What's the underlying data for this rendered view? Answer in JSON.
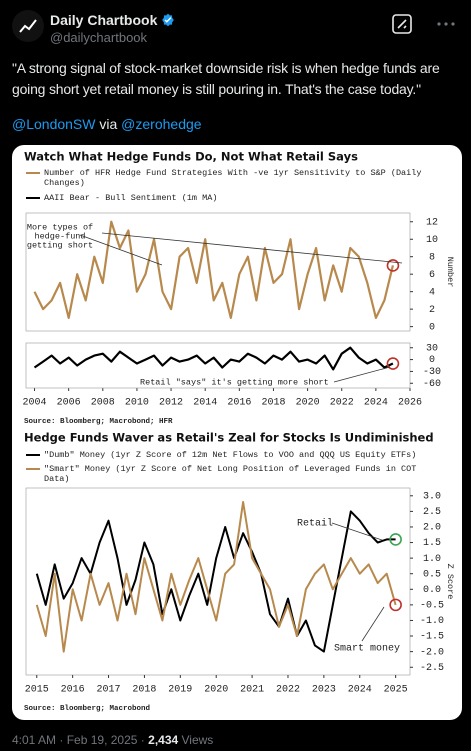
{
  "tweet": {
    "name": "Daily Chartbook",
    "handle": "@dailychartbook",
    "text": "\"A strong signal of stock-market downside risk is when hedge funds are going short yet retail money is still pouring in. That's the case today.\"",
    "mention1": "@LondonSW",
    "via": "via",
    "mention2": "@zerohedge",
    "time": "4:01 AM",
    "separator": "·",
    "date": "Feb 19, 2025",
    "views": "2,434",
    "views_label": "Views"
  },
  "chart_data": [
    {
      "type": "line",
      "title": "Watch What Hedge Funds Do, Not What Retail Says",
      "x": [
        2004,
        2004.5,
        2005,
        2005.5,
        2006,
        2006.5,
        2007,
        2007.5,
        2008,
        2008.5,
        2009,
        2009.5,
        2010,
        2010.5,
        2011,
        2011.5,
        2012,
        2012.5,
        2013,
        2013.5,
        2014,
        2014.5,
        2015,
        2015.5,
        2016,
        2016.5,
        2017,
        2017.5,
        2018,
        2018.5,
        2019,
        2019.5,
        2020,
        2020.5,
        2021,
        2021.5,
        2022,
        2022.5,
        2023,
        2023.5,
        2024,
        2024.5,
        2025
      ],
      "series": [
        {
          "name": "Number of HFR Hedge Fund Strategies With -ve 1yr Sensitivity to S&P (Daily Changes)",
          "color": "#b8894d",
          "values": [
            4,
            2,
            3,
            5,
            1,
            6,
            3,
            8,
            5,
            12,
            9,
            11,
            4,
            6,
            10,
            4,
            2,
            8,
            9,
            5,
            10,
            3,
            5,
            1,
            6,
            8,
            3,
            9,
            5,
            6,
            10,
            2,
            6,
            9,
            3,
            7,
            4,
            9,
            8,
            5,
            1,
            3,
            7
          ]
        },
        {
          "name": "AAII Bear - Bull Sentiment (1m MA)",
          "color": "#000000",
          "axis": "y2",
          "values": [
            -20,
            -5,
            10,
            -10,
            5,
            -15,
            0,
            10,
            15,
            -5,
            20,
            5,
            -10,
            0,
            10,
            -15,
            5,
            -5,
            0,
            10,
            -10,
            5,
            -20,
            0,
            -5,
            15,
            5,
            -10,
            10,
            0,
            20,
            -5,
            0,
            -10,
            10,
            -25,
            15,
            30,
            5,
            -10,
            0,
            -20,
            -10
          ]
        }
      ],
      "xlim": [
        2003.5,
        2026
      ],
      "xticks": [
        2004,
        2006,
        2008,
        2010,
        2012,
        2014,
        2016,
        2018,
        2020,
        2022,
        2024,
        2026
      ],
      "ylim": [
        -0.5,
        13
      ],
      "yticks": [
        0,
        2,
        4,
        6,
        8,
        10,
        12
      ],
      "ylabel": "Number",
      "y2lim": [
        -72,
        42
      ],
      "y2ticks": [
        30,
        0,
        -30,
        -60
      ],
      "annotations": [
        "More types of",
        "hedge-fund",
        "getting short",
        "Retail \"says\" it's getting more short"
      ],
      "source": "Source: Bloomberg; Macrobond; HFR"
    },
    {
      "type": "line",
      "title": "Hedge Funds Waver as Retail's Zeal for Stocks Is Undiminished",
      "x": [
        2015,
        2015.25,
        2015.5,
        2015.75,
        2016,
        2016.25,
        2016.5,
        2016.75,
        2017,
        2017.25,
        2017.5,
        2017.75,
        2018,
        2018.25,
        2018.5,
        2018.75,
        2019,
        2019.25,
        2019.5,
        2019.75,
        2020,
        2020.25,
        2020.5,
        2020.75,
        2021,
        2021.25,
        2021.5,
        2021.75,
        2022,
        2022.25,
        2022.5,
        2022.75,
        2023,
        2023.25,
        2023.5,
        2023.75,
        2024,
        2024.25,
        2024.5,
        2024.75,
        2025
      ],
      "series": [
        {
          "name": "\"Dumb\" Money (1yr Z Score of 12m Net Flows to VOO and QQQ US Equity ETFs)",
          "color": "#000000",
          "values": [
            0.5,
            -0.5,
            0.8,
            -0.3,
            0.2,
            1.0,
            0.5,
            1.5,
            2.2,
            1.0,
            -0.5,
            0.3,
            1.5,
            0.8,
            -0.8,
            0.0,
            -1.0,
            -0.2,
            0.5,
            -0.5,
            1.0,
            2.0,
            1.0,
            1.8,
            1.2,
            0.5,
            -0.8,
            -1.2,
            -0.3,
            -1.5,
            -1.0,
            -1.8,
            -2.0,
            -0.5,
            1.0,
            2.5,
            2.2,
            1.8,
            1.5,
            1.6,
            1.6
          ]
        },
        {
          "name": "\"Smart\" Money (1yr Z Score of Net Long Position of Leveraged Funds in COT Data)",
          "color": "#b8894d",
          "values": [
            -0.5,
            -1.5,
            0.5,
            -2.0,
            0.0,
            -1.0,
            0.5,
            -0.5,
            0.2,
            -1.0,
            0.5,
            -0.8,
            1.0,
            0.0,
            -1.0,
            0.5,
            -0.5,
            0.3,
            1.0,
            0.0,
            -1.0,
            0.5,
            0.8,
            2.8,
            1.0,
            0.5,
            0.0,
            -1.2,
            -0.5,
            -1.5,
            0.0,
            0.5,
            0.8,
            0.0,
            0.5,
            1.0,
            0.5,
            0.8,
            0.2,
            0.5,
            -0.5
          ]
        }
      ],
      "xlim": [
        2014.7,
        2025.4
      ],
      "xticks": [
        2015,
        2016,
        2017,
        2018,
        2019,
        2020,
        2021,
        2022,
        2023,
        2024,
        2025
      ],
      "ylim": [
        -2.75,
        3.25
      ],
      "yticks": [
        {
          "value": 3,
          "label": "3.0"
        },
        2.5,
        {
          "value": 2,
          "label": "2.0"
        },
        1.5,
        {
          "value": 1,
          "label": "1.0"
        },
        0.5,
        {
          "value": 0,
          "label": "0.0"
        },
        -0.5,
        {
          "value": -1,
          "label": "-1.0"
        },
        -1.5,
        {
          "value": -2,
          "label": "-2.0"
        },
        -2.5
      ],
      "ylabel": "Z Score",
      "annotations": [
        "Retail",
        "Smart money"
      ],
      "source": "Source: Bloomberg; Macrobond"
    }
  ]
}
